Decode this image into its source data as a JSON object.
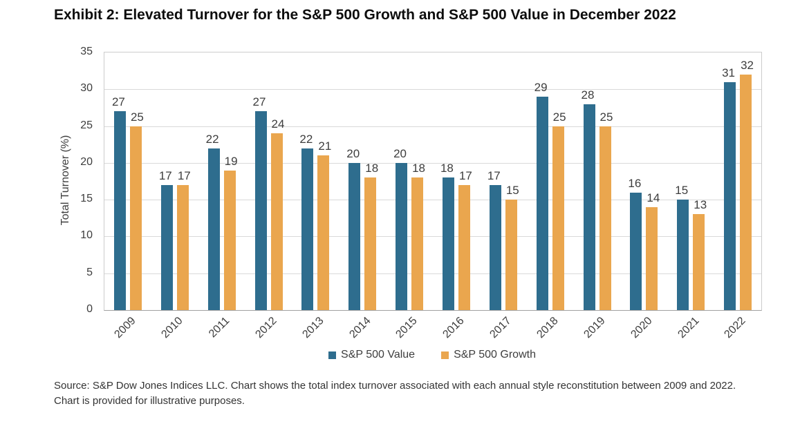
{
  "title": "Exhibit 2: Elevated Turnover for the S&P 500 Growth and S&P 500 Value in December 2022",
  "chart_data": {
    "type": "bar",
    "categories": [
      "2009",
      "2010",
      "2011",
      "2012",
      "2013",
      "2014",
      "2015",
      "2016",
      "2017",
      "2018",
      "2019",
      "2020",
      "2021",
      "2022"
    ],
    "series": [
      {
        "name": "S&P 500 Value",
        "color": "#2E6D8E",
        "values": [
          27,
          17,
          22,
          27,
          22,
          20,
          20,
          18,
          17,
          29,
          28,
          16,
          15,
          31
        ]
      },
      {
        "name": "S&P 500 Growth",
        "color": "#EAA64E",
        "values": [
          25,
          17,
          19,
          24,
          21,
          18,
          18,
          17,
          15,
          25,
          25,
          14,
          13,
          32
        ]
      }
    ],
    "title": "Exhibit 2: Elevated Turnover for the S&P 500 Growth and S&P 500 Value in December 2022",
    "xlabel": "",
    "ylabel": "Total Turnover (%)",
    "ylim": [
      0,
      35
    ],
    "yticks": [
      0,
      5,
      10,
      15,
      20,
      25,
      30,
      35
    ],
    "grid": true,
    "data_labels": true,
    "legend_position": "bottom",
    "gridline_color": "#D9D9D9",
    "label_color": "#3D3D3D"
  },
  "source_note": "Source: S&P Dow Jones Indices LLC. Chart shows the total index turnover associated with each annual style reconstitution between 2009 and 2022. Chart is provided for illustrative purposes."
}
